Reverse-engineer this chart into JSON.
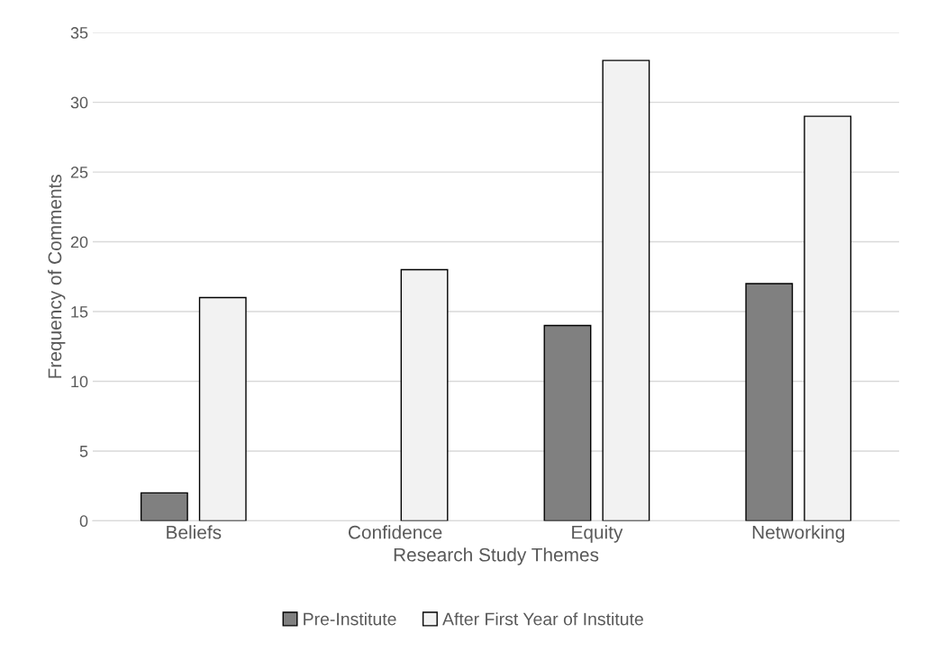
{
  "chart_data": {
    "type": "bar",
    "xlabel": "Research Study Themes",
    "ylabel": "Frequency of Comments",
    "categories": [
      "Beliefs",
      "Confidence",
      "Equity",
      "Networking"
    ],
    "series": [
      {
        "name": "Pre-Institute",
        "color": "#808080",
        "values": [
          2,
          0,
          14,
          17
        ]
      },
      {
        "name": "After First Year of Institute",
        "color": "#f2f2f2",
        "values": [
          16,
          18,
          33,
          29
        ]
      }
    ],
    "ylim": [
      0,
      35
    ],
    "yticks": [
      0,
      5,
      10,
      15,
      20,
      25,
      30,
      35
    ],
    "grid": "y",
    "legend": "bottom"
  }
}
